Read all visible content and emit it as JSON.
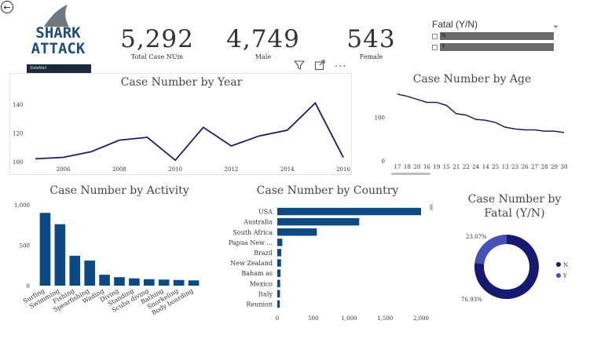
{
  "nav": {
    "back_icon": "back-arrow-icon"
  },
  "logo": {
    "line1": "SHARK",
    "line2": "ATTACK",
    "footer": "StatsMarl",
    "color": "#1f4d7a",
    "fin_color": "#6e7881"
  },
  "kpis": [
    {
      "value": "5,292",
      "label": "Total Case NUm"
    },
    {
      "value": "4,749",
      "label": "Male"
    },
    {
      "value": "543",
      "label": "Female"
    }
  ],
  "slicer": {
    "title": "Fatal (Y/N)",
    "options": [
      "N",
      "Y"
    ]
  },
  "visual_header": {
    "icons": [
      "filter-icon",
      "focus-mode-icon",
      "more-options-icon"
    ]
  },
  "colors": {
    "accent": "#1a1f5e",
    "bar": "#0d4a85",
    "donut_n": "#151a70",
    "donut_y": "#4550b8"
  },
  "charts": {
    "year": {
      "title": "Case Number by Year"
    },
    "age": {
      "title": "Case Number by Age"
    },
    "activity": {
      "title": "Case Number by Activity"
    },
    "country": {
      "title": "Case Number by Country"
    },
    "fatal": {
      "title_line1": "Case Number by",
      "title_line2": "Fatal (Y/N)"
    }
  },
  "chart_data": [
    {
      "type": "line",
      "title": "Case Number by Year",
      "x": [
        2005,
        2006,
        2007,
        2008,
        2009,
        2010,
        2011,
        2012,
        2013,
        2014,
        2015,
        2016
      ],
      "y": [
        102,
        103,
        107,
        115,
        117,
        101,
        124,
        111,
        118,
        122,
        141,
        103
      ],
      "xticks": [
        "2006",
        "2008",
        "2010",
        "2012",
        "2014",
        "2016"
      ],
      "yticks": [
        "100",
        "120",
        "140"
      ],
      "ylim": [
        100,
        145
      ],
      "color": "#1a1f5e"
    },
    {
      "type": "line",
      "title": "Case Number by Age",
      "categories": [
        "17",
        "18",
        "20",
        "16",
        "19",
        "15",
        "21",
        "22",
        "24",
        "14",
        "25",
        "13",
        "23",
        "26",
        "27",
        "28",
        "29",
        "30"
      ],
      "values": [
        153,
        148,
        141,
        134,
        134,
        127,
        108,
        105,
        95,
        93,
        88,
        77,
        73,
        71,
        71,
        68,
        68,
        65
      ],
      "yticks": [
        "0",
        "100"
      ],
      "ylim": [
        0,
        160
      ],
      "color": "#1a1f5e"
    },
    {
      "type": "bar",
      "title": "Case Number by Activity",
      "categories": [
        "Surfing",
        "Swimming",
        "Fishing",
        "Spearfishing",
        "Wading",
        "Diving",
        "Standing",
        "Scuba diving",
        "Bathing",
        "Snorkeling",
        "Body boarding"
      ],
      "values": [
        900,
        760,
        370,
        310,
        135,
        105,
        90,
        80,
        75,
        70,
        65
      ],
      "yticks": [
        "0",
        "500",
        "1,000"
      ],
      "ylim": [
        0,
        1000
      ],
      "color": "#0d4a85"
    },
    {
      "type": "bar",
      "orientation": "horizontal",
      "title": "Case Number by Country",
      "categories": [
        "USA",
        "Australia",
        "South Africa",
        "Papua New ...",
        "Brazil",
        "New Zealand",
        "Baham as",
        "Mexico",
        "Italy",
        "Reunion"
      ],
      "values": [
        2000,
        1140,
        550,
        70,
        55,
        52,
        45,
        40,
        38,
        35
      ],
      "xticks": [
        "0",
        "500",
        "1,000",
        "1,500",
        "2,000"
      ],
      "xlim": [
        0,
        2000
      ],
      "color": "#0d4a85"
    },
    {
      "type": "pie",
      "title": "Case Number by Fatal (Y/N)",
      "labels": [
        "N",
        "Y"
      ],
      "values": [
        76.93,
        23.07
      ],
      "value_labels": [
        "76.93%",
        "23.07%"
      ],
      "colors": [
        "#151a70",
        "#4550b8"
      ]
    }
  ]
}
